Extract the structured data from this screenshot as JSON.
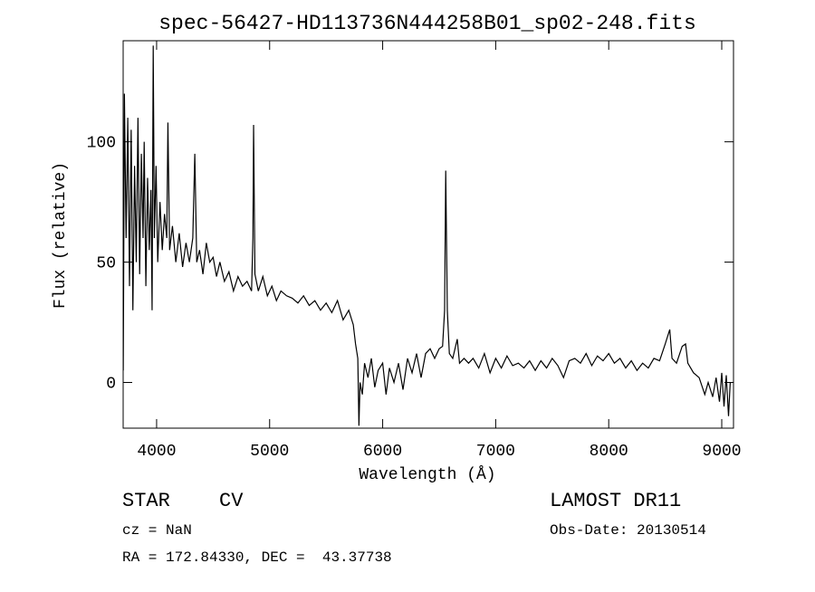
{
  "chart_data": {
    "type": "line",
    "title": "spec-56427-HD113736N444258B01_sp02-248.fits",
    "x_label": "Wavelength (Å)",
    "y_label": "Flux (relative)",
    "xlim": [
      3704,
      9104
    ],
    "ylim": [
      -19,
      142
    ],
    "xticks": [
      4000,
      5000,
      6000,
      7000,
      8000,
      9000
    ],
    "yticks": [
      0,
      50,
      100
    ],
    "series": [
      {
        "color": "#000000",
        "x": [
          3705,
          3715,
          3730,
          3745,
          3760,
          3775,
          3790,
          3805,
          3820,
          3835,
          3850,
          3865,
          3880,
          3890,
          3905,
          3920,
          3935,
          3950,
          3960,
          3970,
          3980,
          3995,
          4010,
          4030,
          4050,
          4070,
          4090,
          4100,
          4115,
          4140,
          4170,
          4200,
          4230,
          4260,
          4290,
          4320,
          4338,
          4355,
          4380,
          4410,
          4440,
          4470,
          4500,
          4530,
          4560,
          4600,
          4640,
          4680,
          4720,
          4760,
          4800,
          4840,
          4852,
          4858,
          4870,
          4900,
          4940,
          4980,
          5020,
          5060,
          5100,
          5150,
          5200,
          5250,
          5300,
          5350,
          5400,
          5450,
          5500,
          5550,
          5600,
          5650,
          5700,
          5740,
          5760,
          5780,
          5790,
          5800,
          5820,
          5840,
          5870,
          5900,
          5930,
          5960,
          6000,
          6030,
          6060,
          6100,
          6140,
          6180,
          6220,
          6260,
          6300,
          6340,
          6380,
          6420,
          6460,
          6500,
          6530,
          6548,
          6558,
          6572,
          6590,
          6620,
          6660,
          6680,
          6720,
          6760,
          6800,
          6850,
          6900,
          6950,
          7000,
          7050,
          7100,
          7150,
          7200,
          7250,
          7300,
          7350,
          7400,
          7450,
          7500,
          7550,
          7600,
          7650,
          7700,
          7750,
          7800,
          7850,
          7900,
          7950,
          8000,
          8050,
          8100,
          8150,
          8200,
          8250,
          8300,
          8350,
          8400,
          8450,
          8500,
          8540,
          8560,
          8600,
          8650,
          8680,
          8700,
          8750,
          8800,
          8850,
          8880,
          8920,
          8950,
          8980,
          9000,
          9020,
          9040,
          9060,
          9075
        ],
        "values": [
          5,
          120,
          60,
          110,
          40,
          105,
          30,
          90,
          50,
          110,
          45,
          95,
          60,
          100,
          40,
          85,
          55,
          80,
          30,
          140,
          60,
          90,
          50,
          75,
          55,
          70,
          60,
          108,
          55,
          65,
          50,
          62,
          48,
          58,
          50,
          60,
          95,
          50,
          55,
          45,
          58,
          50,
          52,
          44,
          50,
          42,
          46,
          38,
          44,
          40,
          42,
          38,
          60,
          107,
          45,
          38,
          44,
          36,
          40,
          34,
          38,
          36,
          35,
          33,
          36,
          32,
          34,
          30,
          33,
          29,
          34,
          26,
          30,
          24,
          16,
          10,
          -18,
          0,
          -5,
          8,
          2,
          10,
          -2,
          5,
          8,
          -5,
          6,
          0,
          8,
          -3,
          10,
          4,
          12,
          2,
          12,
          14,
          10,
          14,
          15,
          30,
          88,
          30,
          12,
          10,
          18,
          8,
          10,
          8,
          10,
          6,
          12,
          4,
          10,
          6,
          11,
          7,
          8,
          6,
          9,
          5,
          9,
          6,
          10,
          7,
          2,
          9,
          10,
          8,
          12,
          7,
          11,
          9,
          12,
          8,
          10,
          6,
          9,
          5,
          8,
          6,
          10,
          9,
          16,
          22,
          10,
          8,
          15,
          16,
          8,
          4,
          2,
          -5,
          0,
          -6,
          2,
          -8,
          4,
          -10,
          3,
          -14,
          0
        ]
      }
    ]
  },
  "footer": {
    "class": "STAR",
    "subclass": "CV",
    "survey": "LAMOST DR11",
    "cz": "cz = NaN",
    "obs_date": "Obs-Date: 20130514",
    "coords": "RA = 172.84330, DEC =  43.37738"
  }
}
